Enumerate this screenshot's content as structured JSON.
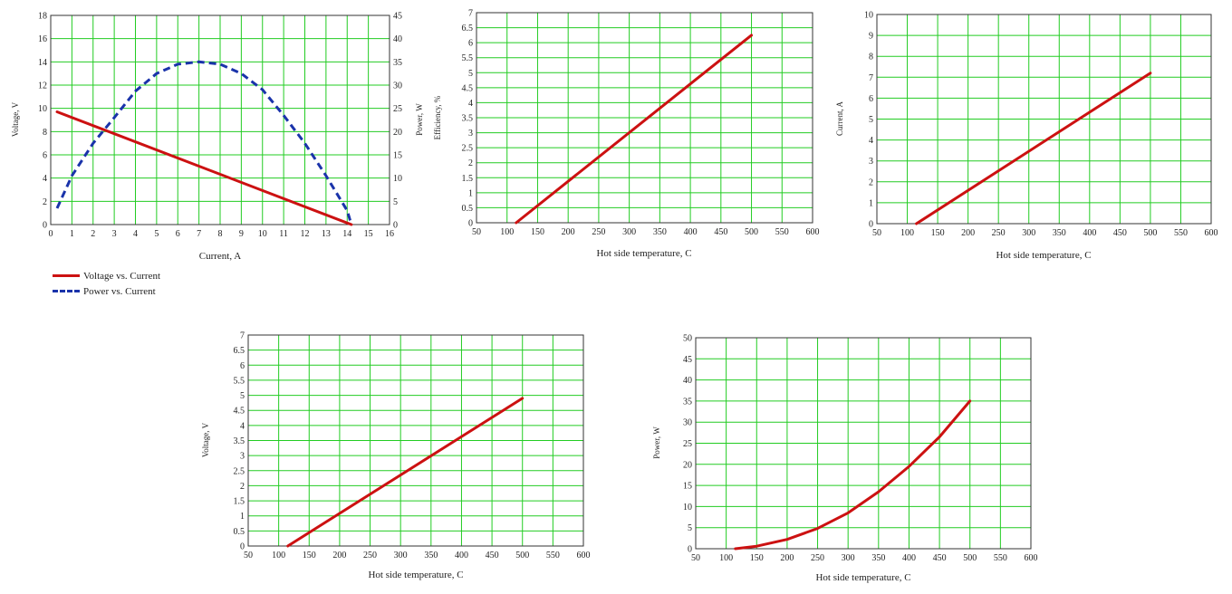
{
  "colors": {
    "grid": "#22cc22",
    "voltage": "#cc1111",
    "power": "#1a33aa",
    "axis": "#333333"
  },
  "legend": {
    "voltage_label": "Voltage vs. Current",
    "power_label": "Power vs. Current"
  },
  "chart_data": [
    {
      "type": "line",
      "xlabel": "Current, A",
      "ylabel": "Voltage, V",
      "y2label": "Power, W",
      "xlim": [
        0,
        16
      ],
      "ylim": [
        0,
        18
      ],
      "y2lim": [
        0,
        45
      ],
      "xticks": [
        0,
        1,
        2,
        3,
        4,
        5,
        6,
        7,
        8,
        9,
        10,
        11,
        12,
        13,
        14,
        15,
        16
      ],
      "yticks": [
        0,
        2,
        4,
        6,
        8,
        10,
        12,
        14,
        16,
        18
      ],
      "y2ticks": [
        0,
        5,
        10,
        15,
        20,
        25,
        30,
        35,
        40,
        45
      ],
      "grid": true,
      "series": [
        {
          "name": "Voltage vs. Current",
          "axis": "left",
          "style": "solid",
          "x": [
            0.3,
            14.2
          ],
          "y": [
            9.7,
            0
          ]
        },
        {
          "name": "Power vs. Current",
          "axis": "right",
          "style": "dashed",
          "x": [
            0.3,
            1.0,
            2.0,
            3.0,
            4.0,
            5.0,
            6.0,
            7.0,
            8.0,
            9.0,
            10.0,
            11.0,
            12.0,
            13.0,
            14.0,
            14.2
          ],
          "y": [
            3.5,
            10.5,
            17.5,
            23.0,
            28.7,
            32.5,
            34.5,
            35.0,
            34.5,
            32.5,
            29.0,
            23.5,
            17.5,
            10.5,
            3.0,
            0
          ]
        }
      ]
    },
    {
      "type": "line",
      "xlabel": "Hot side temperature, C",
      "ylabel": "Efficiency, %",
      "xlim": [
        50,
        600
      ],
      "ylim": [
        0,
        7
      ],
      "xticks": [
        50,
        100,
        150,
        200,
        250,
        300,
        350,
        400,
        450,
        500,
        550,
        600
      ],
      "yticks": [
        0,
        0.5,
        1,
        1.5,
        2,
        2.5,
        3,
        3.5,
        4,
        4.5,
        5,
        5.5,
        6,
        6.5,
        7
      ],
      "grid": true,
      "series": [
        {
          "x": [
            115,
            500
          ],
          "y": [
            0,
            6.25
          ]
        }
      ]
    },
    {
      "type": "line",
      "xlabel": "Hot side temperature, C",
      "ylabel": "Current, A",
      "xlim": [
        50,
        600
      ],
      "ylim": [
        0,
        10
      ],
      "xticks": [
        50,
        100,
        150,
        200,
        250,
        300,
        350,
        400,
        450,
        500,
        550,
        600
      ],
      "yticks": [
        0,
        1,
        2,
        3,
        4,
        5,
        6,
        7,
        8,
        9,
        10
      ],
      "grid": true,
      "series": [
        {
          "x": [
            115,
            500
          ],
          "y": [
            0,
            7.2
          ]
        }
      ]
    },
    {
      "type": "line",
      "xlabel": "Hot side temperature, C",
      "ylabel": "Voltage, V",
      "xlim": [
        50,
        600
      ],
      "ylim": [
        0,
        7
      ],
      "xticks": [
        50,
        100,
        150,
        200,
        250,
        300,
        350,
        400,
        450,
        500,
        550,
        600
      ],
      "yticks": [
        0,
        0.5,
        1,
        1.5,
        2,
        2.5,
        3,
        3.5,
        4,
        4.5,
        5,
        5.5,
        6,
        6.5,
        7
      ],
      "grid": true,
      "series": [
        {
          "x": [
            115,
            500
          ],
          "y": [
            0,
            4.9
          ]
        }
      ]
    },
    {
      "type": "line",
      "xlabel": "Hot side temperature, C",
      "ylabel": "Power, W",
      "xlim": [
        50,
        600
      ],
      "ylim": [
        0,
        50
      ],
      "xticks": [
        50,
        100,
        150,
        200,
        250,
        300,
        350,
        400,
        450,
        500,
        550,
        600
      ],
      "yticks": [
        0,
        5,
        10,
        15,
        20,
        25,
        30,
        35,
        40,
        45,
        50
      ],
      "grid": true,
      "series": [
        {
          "x": [
            115,
            150,
            200,
            250,
            300,
            350,
            400,
            450,
            500
          ],
          "y": [
            0,
            0.6,
            2.2,
            4.8,
            8.5,
            13.5,
            19.5,
            26.5,
            35
          ]
        }
      ]
    }
  ]
}
